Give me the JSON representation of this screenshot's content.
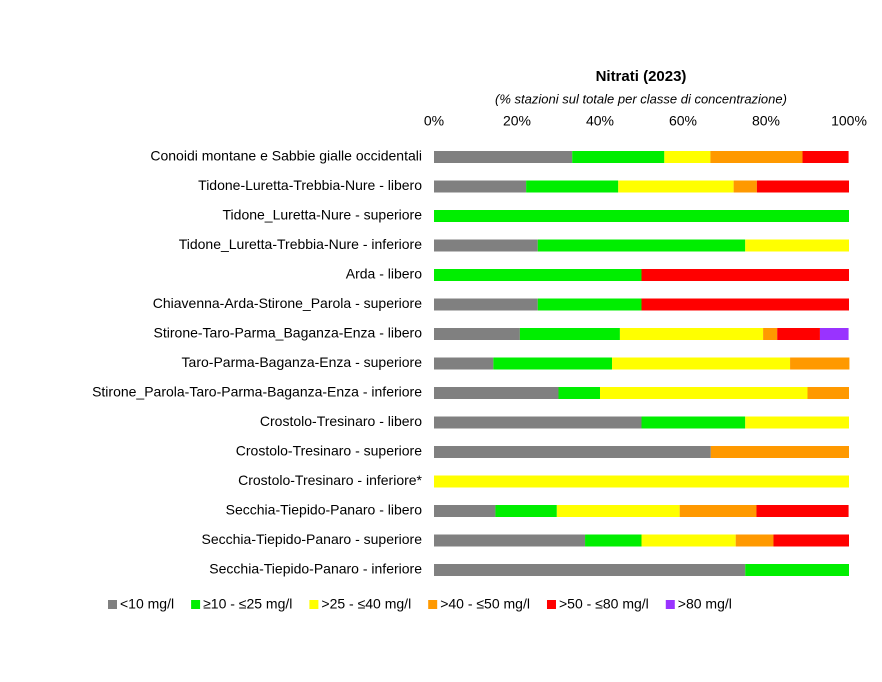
{
  "chart_data": {
    "type": "stacked-barh",
    "title": "Nitrati (2023)",
    "subtitle": "(% stazioni sul totale per classe di concentrazione)",
    "categories": [
      "Conoidi montane e Sabbie gialle occidentali",
      "Tidone-Luretta-Trebbia-Nure - libero",
      "Tidone_Luretta-Nure - superiore",
      "Tidone_Luretta-Trebbia-Nure - inferiore",
      "Arda - libero",
      "Chiavenna-Arda-Stirone_Parola - superiore",
      "Stirone-Taro-Parma_Baganza-Enza - libero",
      "Taro-Parma-Baganza-Enza - superiore",
      "Stirone_Parola-Taro-Parma-Baganza-Enza - inferiore",
      "Crostolo-Tresinaro - libero",
      "Crostolo-Tresinaro - superiore",
      "Crostolo-Tresinaro - inferiore*",
      "Secchia-Tiepido-Panaro - libero",
      "Secchia-Tiepido-Panaro - superiore",
      "Secchia-Tiepido-Panaro - inferiore"
    ],
    "series": [
      {
        "name": "<10 mg/l",
        "color": "#808080",
        "values": [
          33.3,
          22.2,
          0,
          25,
          0,
          25,
          20.7,
          14.3,
          30,
          50,
          66.7,
          0,
          14.8,
          36.4,
          75
        ]
      },
      {
        "name": "≥10 - ≤25 mg/l",
        "color": "#00ee00",
        "values": [
          22.2,
          22.2,
          100,
          50,
          50,
          25,
          24.1,
          28.6,
          10,
          25,
          0,
          0,
          14.8,
          13.6,
          25
        ]
      },
      {
        "name": ">25 - ≤40 mg/l",
        "color": "#ffff00",
        "values": [
          11.1,
          27.8,
          0,
          25,
          0,
          0,
          34.5,
          42.9,
          50,
          25,
          0,
          100,
          29.6,
          22.7,
          0
        ]
      },
      {
        "name": ">40 - ≤50 mg/l",
        "color": "#ff9900",
        "values": [
          22.2,
          5.6,
          0,
          0,
          0,
          0,
          3.4,
          14.3,
          10,
          0,
          33.3,
          0,
          18.5,
          9.1,
          0
        ]
      },
      {
        "name": ">50 - ≤80 mg/l",
        "color": "#ff0000",
        "values": [
          11.1,
          22.2,
          0,
          0,
          50,
          50,
          10.3,
          0,
          0,
          0,
          0,
          0,
          22.2,
          18.2,
          0
        ]
      },
      {
        "name": ">80 mg/l",
        "color": "#9933ff",
        "values": [
          0,
          0,
          0,
          0,
          0,
          0,
          6.9,
          0,
          0,
          0,
          0,
          0,
          0,
          0,
          0
        ]
      }
    ],
    "xlim": [
      0,
      100
    ],
    "xticks": [
      {
        "value": 0,
        "label": "0%"
      },
      {
        "value": 20,
        "label": "20%"
      },
      {
        "value": 40,
        "label": "40%"
      },
      {
        "value": 60,
        "label": "60%"
      },
      {
        "value": 80,
        "label": "80%"
      },
      {
        "value": 100,
        "label": "100%"
      }
    ],
    "legend": "bottom"
  }
}
